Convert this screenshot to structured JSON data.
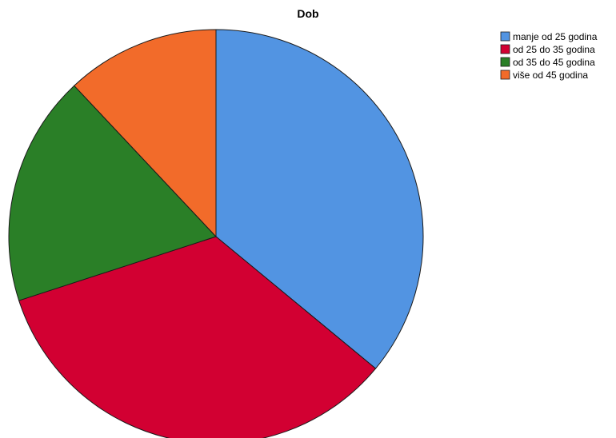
{
  "chart_data": {
    "type": "pie",
    "title": "Dob",
    "categories": [
      "manje od 25 godina",
      "od 25 do 35 godina",
      "od 35 do 45 godina",
      "više od 45 godina"
    ],
    "values": [
      36,
      34,
      18,
      12
    ],
    "colors": [
      "#5294e2",
      "#d20032",
      "#2a7f27",
      "#f26b2a"
    ],
    "start_angle_deg": 0,
    "direction": "clockwise",
    "legend_position": "top-right"
  }
}
